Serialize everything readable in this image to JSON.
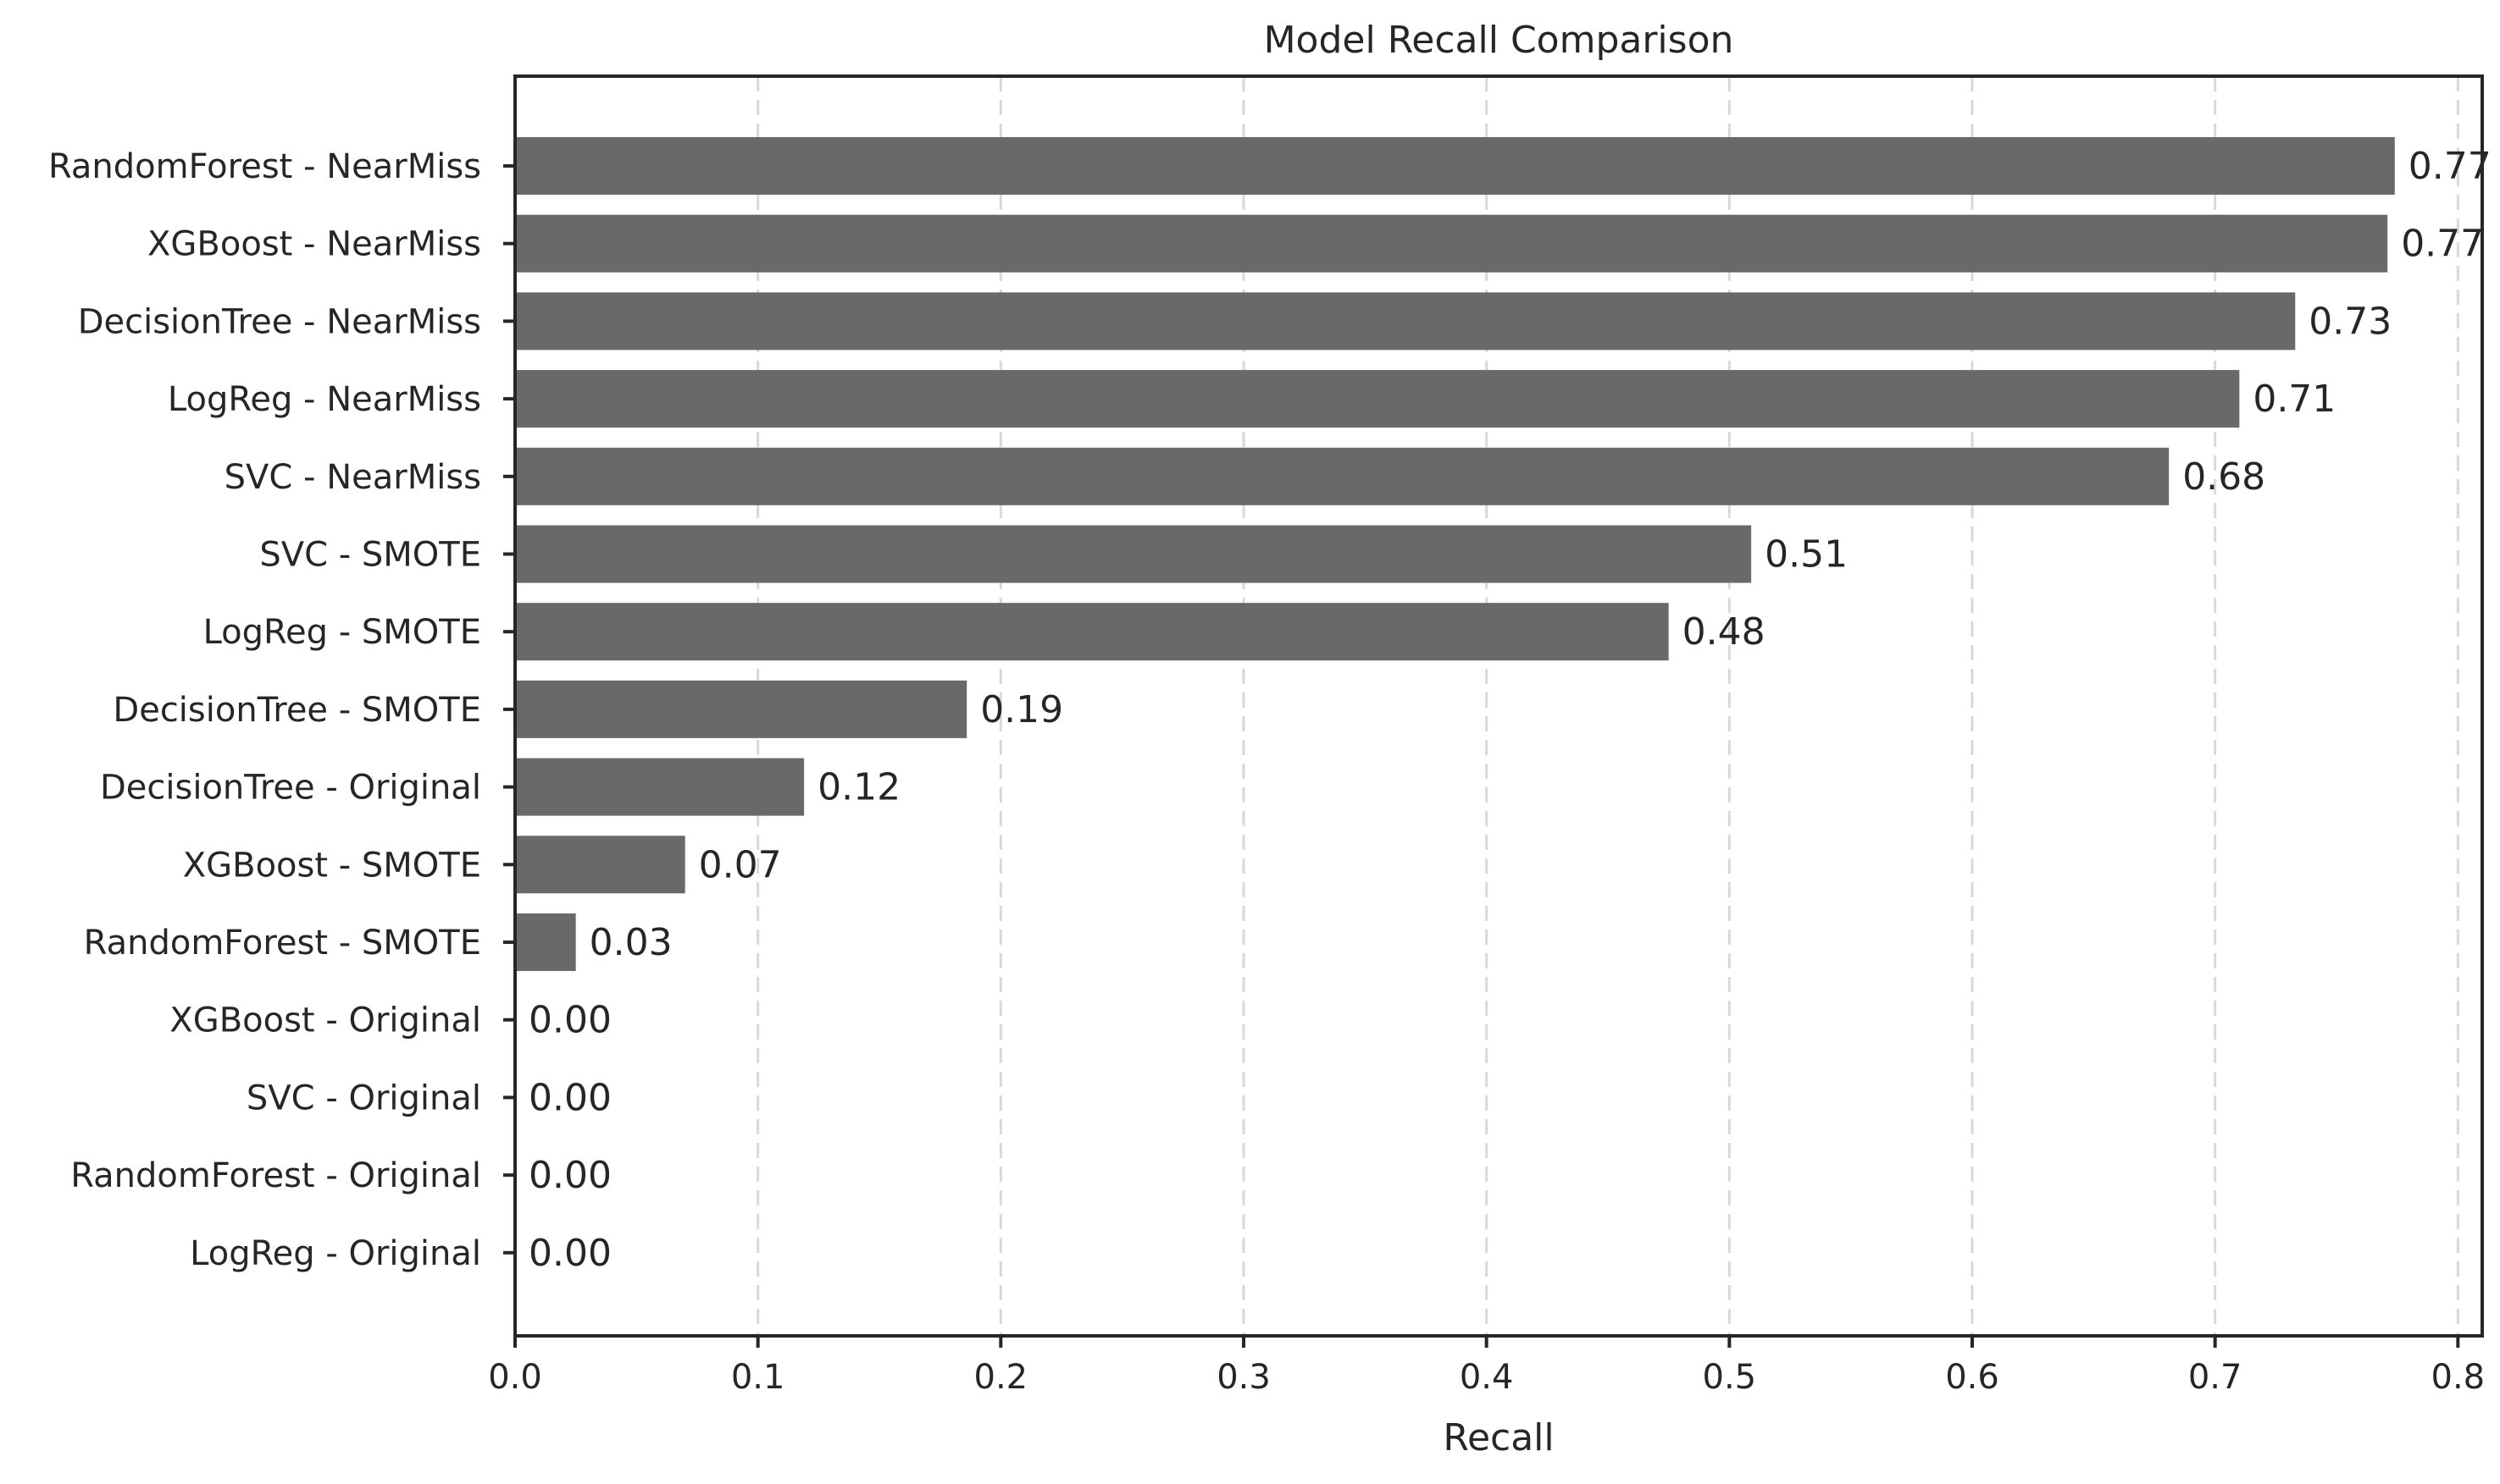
{
  "chart_data": {
    "type": "bar",
    "orientation": "horizontal",
    "title": "Model Recall Comparison",
    "xlabel": "Recall",
    "ylabel": "",
    "xlim": [
      0.0,
      0.81
    ],
    "xticks": [
      0.0,
      0.1,
      0.2,
      0.3,
      0.4,
      0.5,
      0.6,
      0.7,
      0.8
    ],
    "xtick_labels": [
      "0.0",
      "0.1",
      "0.2",
      "0.3",
      "0.4",
      "0.5",
      "0.6",
      "0.7",
      "0.8"
    ],
    "grid": "x-dashed",
    "bar_color": "#696969",
    "categories": [
      "RandomForest - NearMiss",
      "XGBoost - NearMiss",
      "DecisionTree - NearMiss",
      "LogReg - NearMiss",
      "SVC - NearMiss",
      "SVC - SMOTE",
      "LogReg - SMOTE",
      "DecisionTree - SMOTE",
      "DecisionTree - Original",
      "XGBoost - SMOTE",
      "RandomForest - SMOTE",
      "XGBoost - Original",
      "SVC - Original",
      "RandomForest - Original",
      "LogReg - Original"
    ],
    "values": [
      0.774,
      0.771,
      0.733,
      0.71,
      0.681,
      0.509,
      0.475,
      0.186,
      0.119,
      0.07,
      0.025,
      0.0,
      0.0,
      0.0,
      0.0
    ],
    "value_labels": [
      "0.77",
      "0.77",
      "0.73",
      "0.71",
      "0.68",
      "0.51",
      "0.48",
      "0.19",
      "0.12",
      "0.07",
      "0.03",
      "0.00",
      "0.00",
      "0.00",
      "0.00"
    ]
  }
}
